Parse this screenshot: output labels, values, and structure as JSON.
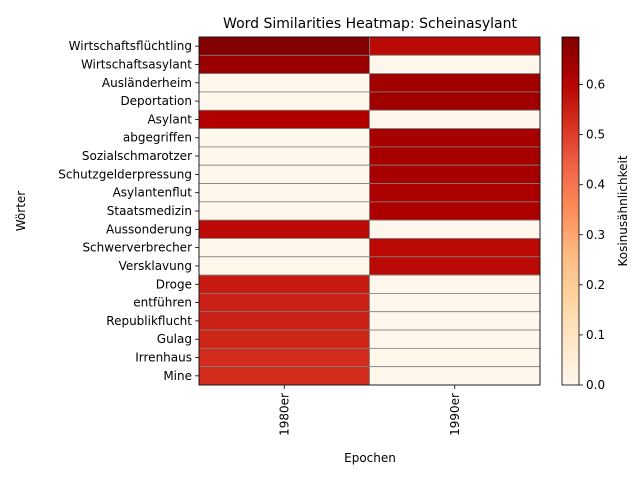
{
  "chart_data": {
    "type": "heatmap",
    "title": "Word Similarities Heatmap: Scheinasylant",
    "xlabel": "Epochen",
    "ylabel": "Wörter",
    "colorbar_label": "Kosinusähnlichkeit",
    "colormap": "OrRd",
    "value_range": [
      0.0,
      0.695
    ],
    "colorbar_ticks": [
      "0.0",
      "0.1",
      "0.2",
      "0.3",
      "0.4",
      "0.5",
      "0.6"
    ],
    "colorbar_tick_values": [
      0.0,
      0.1,
      0.2,
      0.3,
      0.4,
      0.5,
      0.6
    ],
    "cell_border_color": "#808080",
    "columns": [
      "1980er",
      "1990er"
    ],
    "rows": [
      {
        "word": "Wirtschaftsflüchtling",
        "values": [
          0.69,
          0.59
        ]
      },
      {
        "word": "Wirtschaftsasylant",
        "values": [
          0.65,
          0.0
        ]
      },
      {
        "word": "Ausländerheim",
        "values": [
          0.0,
          0.64
        ]
      },
      {
        "word": "Deportation",
        "values": [
          0.0,
          0.64
        ]
      },
      {
        "word": "Asylant",
        "values": [
          0.61,
          0.0
        ]
      },
      {
        "word": "abgegriffen",
        "values": [
          0.0,
          0.63
        ]
      },
      {
        "word": "Sozialschmarotzer",
        "values": [
          0.0,
          0.63
        ]
      },
      {
        "word": "Schutzgelderpressung",
        "values": [
          0.0,
          0.63
        ]
      },
      {
        "word": "Asylantenflut",
        "values": [
          0.0,
          0.62
        ]
      },
      {
        "word": "Staatsmedizin",
        "values": [
          0.0,
          0.62
        ]
      },
      {
        "word": "Aussonderung",
        "values": [
          0.59,
          0.0
        ]
      },
      {
        "word": "Schwerverbrecher",
        "values": [
          0.0,
          0.59
        ]
      },
      {
        "word": "Versklavung",
        "values": [
          0.0,
          0.59
        ]
      },
      {
        "word": "Droge",
        "values": [
          0.56,
          0.0
        ]
      },
      {
        "word": "entführen",
        "values": [
          0.55,
          0.0
        ]
      },
      {
        "word": "Republikflucht",
        "values": [
          0.55,
          0.0
        ]
      },
      {
        "word": "Gulag",
        "values": [
          0.54,
          0.0
        ]
      },
      {
        "word": "Irrenhaus",
        "values": [
          0.53,
          0.0
        ]
      },
      {
        "word": "Mine",
        "values": [
          0.53,
          0.0
        ]
      }
    ]
  }
}
